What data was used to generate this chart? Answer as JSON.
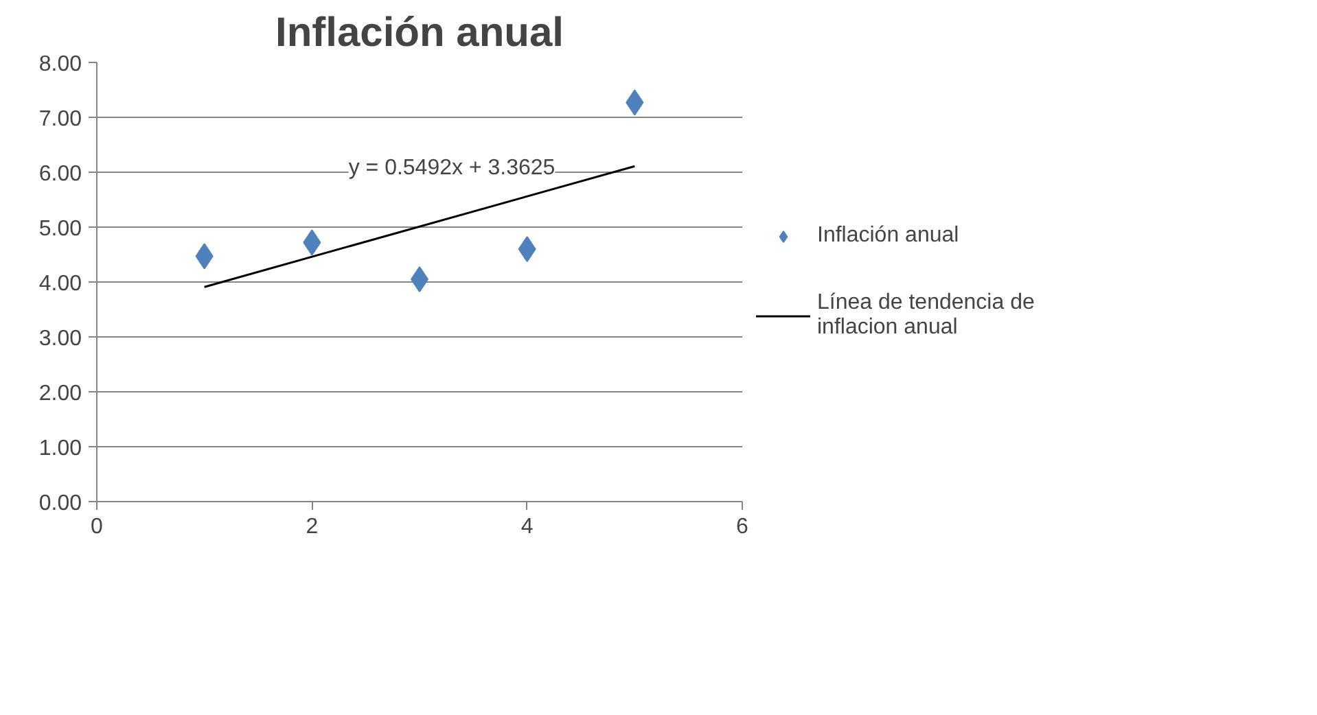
{
  "chart_data": {
    "type": "scatter",
    "title": "Inflación anual",
    "x": [
      1,
      2,
      3,
      4,
      5
    ],
    "series": [
      {
        "name": "Inflación anual",
        "color": "#4f81bd",
        "marker": "diamond",
        "values": [
          4.47,
          4.72,
          4.05,
          4.6,
          7.27
        ]
      },
      {
        "name": "Línea de tendencia de inflacion anual",
        "color": "#000000",
        "type": "line",
        "x": [
          1,
          5
        ],
        "values": [
          3.91,
          6.11
        ]
      }
    ],
    "annotations": [
      "y = 0.5492x + 3.3625"
    ],
    "xlim": [
      0,
      6
    ],
    "xticks": [
      0,
      2,
      4,
      6
    ],
    "ylim": [
      0,
      8
    ],
    "yticks": [
      {
        "value": 0,
        "label": "0.00"
      },
      {
        "value": 1,
        "label": "1.00"
      },
      {
        "value": 2,
        "label": "2.00"
      },
      {
        "value": 3,
        "label": "3.00"
      },
      {
        "value": 4,
        "label": "4.00"
      },
      {
        "value": 5,
        "label": "5.00"
      },
      {
        "value": 6,
        "label": "6.00"
      },
      {
        "value": 7,
        "label": "7.00"
      },
      {
        "value": 8,
        "label": "8.00"
      }
    ],
    "grid": "y",
    "legend": "right"
  }
}
